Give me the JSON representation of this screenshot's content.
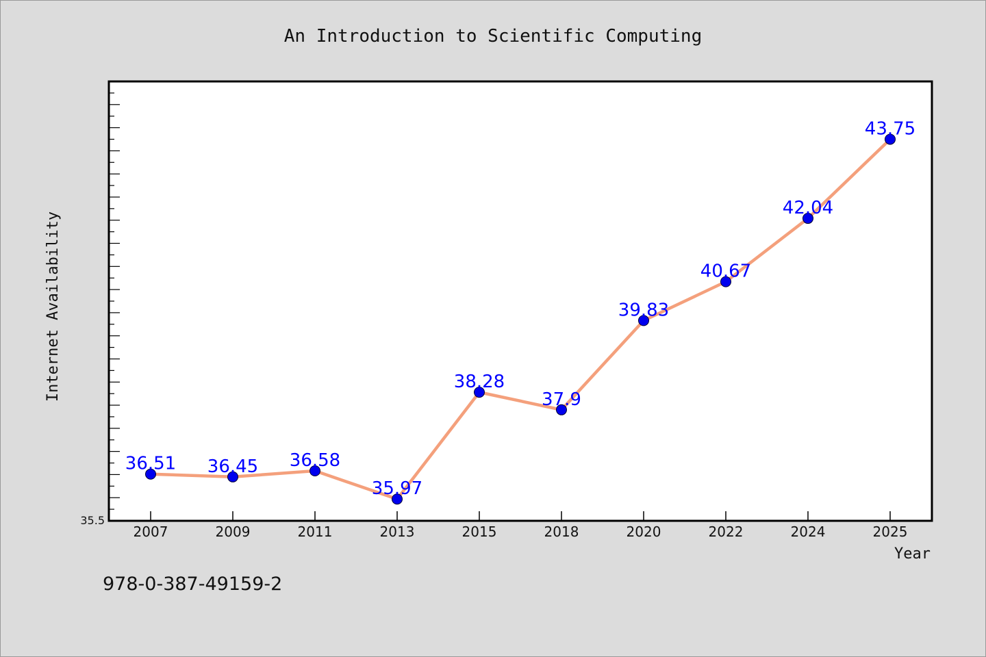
{
  "chart_data": {
    "type": "line",
    "title": "An Introduction to Scientific Computing",
    "xlabel": "Year",
    "ylabel": "Internet Availability",
    "categories": [
      "2007",
      "2009",
      "2011",
      "2013",
      "2015",
      "2018",
      "2020",
      "2022",
      "2024",
      "2025"
    ],
    "series": [
      {
        "values": [
          36.51,
          36.45,
          36.58,
          35.97,
          38.28,
          37.9,
          39.83,
          40.67,
          42.04,
          43.75
        ]
      }
    ],
    "data_labels": [
      "36.51",
      "36.45",
      "36.58",
      "35.97",
      "38.28",
      "37.9",
      "39.83",
      "40.67",
      "42.04",
      "43.75"
    ],
    "y_tick_label": "35.5",
    "ylim": [
      35.5,
      45.0
    ],
    "grid": false,
    "line_color": "#f4a07c",
    "marker_color": "#0000ee",
    "label_color": "#0000ff"
  },
  "footer_code": "978-0-387-49159-2"
}
